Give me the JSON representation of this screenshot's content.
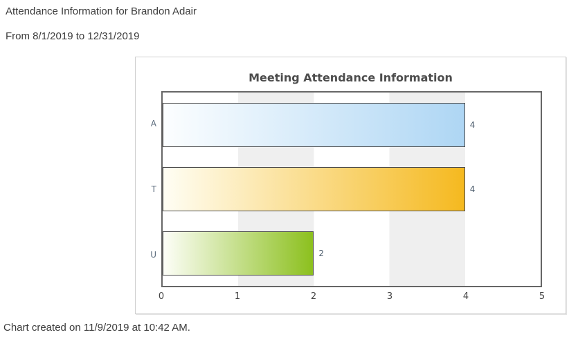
{
  "page": {
    "title": "Attendance Information for Brandon Adair",
    "date_range": "From 8/1/2019 to 12/31/2019",
    "footer": "Chart created on 11/9/2019 at 10:42 AM."
  },
  "chart_data": {
    "type": "bar",
    "orientation": "horizontal",
    "title": "Meeting Attendance Information",
    "categories": [
      "A",
      "T",
      "U"
    ],
    "values": [
      4,
      4,
      2
    ],
    "value_labels": [
      "4",
      "4",
      "2"
    ],
    "xlabel": "",
    "ylabel": "",
    "xlim": [
      0,
      5
    ],
    "x_ticks": [
      "0",
      "1",
      "2",
      "3",
      "4",
      "5"
    ],
    "legend_position": "none",
    "grid": "alternating vertical bands between ticks 1-2 and 3-4",
    "colors": {
      "bar_gradient_start": [
        "#fcfeff",
        "#fffef4",
        "#fdfef8"
      ],
      "bar_gradient_end": [
        "#aed6f4",
        "#f5b91f",
        "#8cc01e"
      ],
      "bar_border": "#4b4b4b",
      "plot_border": "#666666",
      "stripe": "#efefef",
      "panel_border": "#cfcfcf",
      "title_color": "#4d4d4d",
      "category_label_color": "#5d6d7e",
      "value_label_color": "#4a5a6a",
      "tick_label_color": "#444444",
      "page_text_color": "#3b3b3b"
    }
  }
}
